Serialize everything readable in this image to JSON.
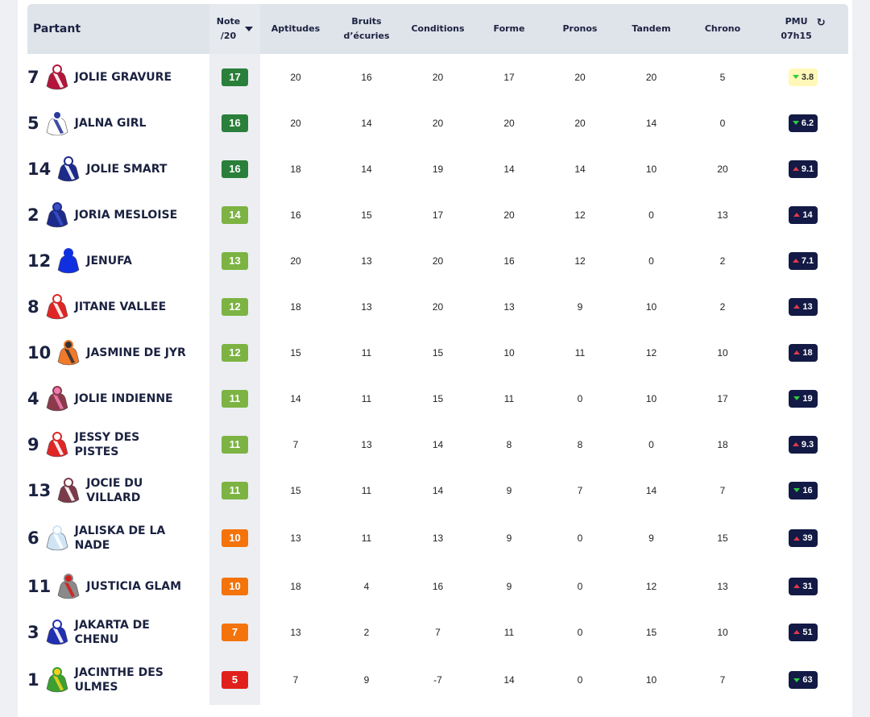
{
  "table": {
    "columns": [
      "Partant",
      [
        "Note",
        "/20"
      ],
      "Aptitudes",
      "Bruits d’écuries",
      "Conditions",
      "Forme",
      "Pronos",
      "Tandem",
      "Chrono",
      [
        "PMU",
        "07h15"
      ]
    ],
    "rows": [
      {
        "num": 7,
        "name": "JOLIE GRAVURE",
        "silk": [
          "#b3163a",
          "#ffffff"
        ],
        "note": 17,
        "note_color": "#2a7f3a",
        "scores": [
          20,
          16,
          20,
          17,
          20,
          20,
          5
        ],
        "pmu": 3.8,
        "trend": "down",
        "highlight": true
      },
      {
        "num": 5,
        "name": "JALNA GIRL",
        "silk": [
          "#ffffff",
          "#2b3a9c"
        ],
        "note": 16,
        "note_color": "#2a7f3a",
        "scores": [
          20,
          14,
          20,
          20,
          20,
          14,
          0
        ],
        "pmu": 6.2,
        "trend": "down"
      },
      {
        "num": 14,
        "name": "JOLIE SMART",
        "silk": [
          "#1c2a8a",
          "#ffffff"
        ],
        "note": 16,
        "note_color": "#2a7f3a",
        "scores": [
          18,
          14,
          19,
          14,
          14,
          10,
          20
        ],
        "pmu": 9.1,
        "trend": "up"
      },
      {
        "num": 2,
        "name": "JORIA MESLOISE",
        "silk": [
          "#1c2a8a",
          "#3b4fc4"
        ],
        "note": 14,
        "note_color": "#7cb342",
        "scores": [
          16,
          15,
          17,
          20,
          12,
          0,
          13
        ],
        "pmu": 14,
        "trend": "up"
      },
      {
        "num": 12,
        "name": "JENUFA",
        "silk": [
          "#1030e0",
          "#1030e0"
        ],
        "note": 13,
        "note_color": "#7cb342",
        "scores": [
          20,
          13,
          20,
          16,
          12,
          0,
          2
        ],
        "pmu": 7.1,
        "trend": "up"
      },
      {
        "num": 8,
        "name": "JITANE VALLEE",
        "silk": [
          "#e02525",
          "#ffffff"
        ],
        "note": 12,
        "note_color": "#7cb342",
        "scores": [
          18,
          13,
          20,
          13,
          9,
          10,
          2
        ],
        "pmu": 13,
        "trend": "up"
      },
      {
        "num": 10,
        "name": "JASMINE DE JYR",
        "silk": [
          "#f07a2a",
          "#333333"
        ],
        "note": 12,
        "note_color": "#7cb342",
        "scores": [
          15,
          11,
          15,
          10,
          11,
          12,
          10
        ],
        "pmu": 18,
        "trend": "up"
      },
      {
        "num": 4,
        "name": "JOLIE INDIENNE",
        "silk": [
          "#8a3a4a",
          "#f07ab0"
        ],
        "note": 11,
        "note_color": "#7cb342",
        "scores": [
          14,
          11,
          15,
          11,
          0,
          10,
          17
        ],
        "pmu": 19,
        "trend": "down"
      },
      {
        "num": 9,
        "name": "JESSY DES PISTES",
        "silk": [
          "#e02525",
          "#ffffff"
        ],
        "note": 11,
        "note_color": "#7cb342",
        "scores": [
          7,
          13,
          14,
          8,
          8,
          0,
          18
        ],
        "pmu": 9.3,
        "trend": "up"
      },
      {
        "num": 13,
        "name": "JOCIE DU VILLARD",
        "silk": [
          "#7a3a4a",
          "#ffffff"
        ],
        "note": 11,
        "note_color": "#7cb342",
        "scores": [
          15,
          11,
          14,
          9,
          7,
          14,
          7
        ],
        "pmu": 16,
        "trend": "down"
      },
      {
        "num": 6,
        "name": "JALISKA DE LA NADE",
        "silk": [
          "#cfe4f4",
          "#ffffff"
        ],
        "note": 10,
        "note_color": "#f4730a",
        "scores": [
          13,
          11,
          13,
          9,
          0,
          9,
          15
        ],
        "pmu": 39,
        "trend": "up",
        "tall": true
      },
      {
        "num": 11,
        "name": "JUSTICIA GLAM",
        "silk": [
          "#8a8a8a",
          "#d02020"
        ],
        "note": 10,
        "note_color": "#f4730a",
        "scores": [
          18,
          4,
          16,
          9,
          0,
          12,
          13
        ],
        "pmu": 31,
        "trend": "up"
      },
      {
        "num": 3,
        "name": "JAKARTA DE CHENU",
        "silk": [
          "#2030b0",
          "#ffffff"
        ],
        "note": 7,
        "note_color": "#f4730a",
        "scores": [
          13,
          2,
          7,
          11,
          0,
          15,
          10
        ],
        "pmu": 51,
        "trend": "up"
      },
      {
        "num": 1,
        "name": "JACINTHE DES ULMES",
        "silk": [
          "#3aa030",
          "#f0d020"
        ],
        "note": 5,
        "note_color": "#e0201b",
        "scores": [
          7,
          9,
          -7,
          14,
          0,
          10,
          7
        ],
        "pmu": 63,
        "trend": "down",
        "tall": true
      }
    ]
  }
}
